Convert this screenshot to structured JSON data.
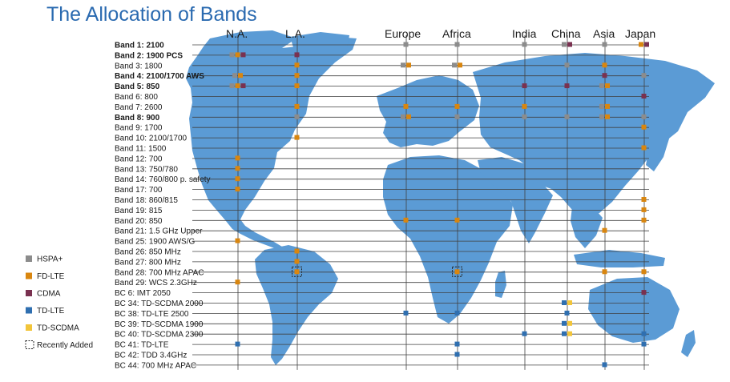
{
  "title": "The Allocation of Bands",
  "colors": {
    "map": "#5b9bd5",
    "HSPA+": "#8c8c8c",
    "FD-LTE": "#d9860f",
    "CDMA": "#7a3150",
    "TD-LTE": "#2f6fb0",
    "TD-SCDMA": "#f2c53a",
    "title": "#2a6ab0"
  },
  "regions": [
    "N.A.",
    "L.A.",
    "Europe",
    "Africa",
    "India",
    "China",
    "Asia",
    "Japan"
  ],
  "bands": [
    {
      "label": "Band 1:  2100",
      "bold": true
    },
    {
      "label": "Band 2:  1900 PCS",
      "bold": true
    },
    {
      "label": "Band 3:  1800",
      "bold": false
    },
    {
      "label": "Band 4:  2100/1700 AWS",
      "bold": true
    },
    {
      "label": "Band 5:  850",
      "bold": true
    },
    {
      "label": "Band 6:  800",
      "bold": false
    },
    {
      "label": "Band 7:  2600",
      "bold": false
    },
    {
      "label": "Band 8:  900",
      "bold": true
    },
    {
      "label": "Band 9:  1700",
      "bold": false
    },
    {
      "label": "Band 10:  2100/1700",
      "bold": false
    },
    {
      "label": "Band 11:  1500",
      "bold": false
    },
    {
      "label": "Band 12:  700",
      "bold": false
    },
    {
      "label": "Band 13:  750/780",
      "bold": false
    },
    {
      "label": "Band 14:  760/800 p. safety",
      "bold": false
    },
    {
      "label": "Band 17:  700",
      "bold": false
    },
    {
      "label": "Band 18:  860/815",
      "bold": false
    },
    {
      "label": "Band 19:  815",
      "bold": false
    },
    {
      "label": "Band 20:  850",
      "bold": false
    },
    {
      "label": "Band 21:  1.5 GHz Upper",
      "bold": false
    },
    {
      "label": "Band 25:  1900 AWS/G",
      "bold": false
    },
    {
      "label": "Band 26:  850 MHz",
      "bold": false
    },
    {
      "label": "Band 27:  800 MHz",
      "bold": false
    },
    {
      "label": "Band 28:  700 MHz APAC",
      "bold": false
    },
    {
      "label": "Band 29:  WCS 2.3GHz",
      "bold": false
    },
    {
      "label": "BC 6:  IMT 2050",
      "bold": false
    },
    {
      "label": "BC 34:  TD-SCDMA 2000",
      "bold": false
    },
    {
      "label": "BC 38:  TD-LTE 2500",
      "bold": false
    },
    {
      "label": "BC 39:  TD-SCDMA 1900",
      "bold": false
    },
    {
      "label": "BC 40:  TD-SCDMA 2300",
      "bold": false
    },
    {
      "label": "BC 41:  TD-LTE",
      "bold": false
    },
    {
      "label": "BC 42:  TDD 3.4GHz",
      "bold": false
    },
    {
      "label": "BC 44:  700 MHz APAC",
      "bold": false
    }
  ],
  "legend": [
    {
      "label": "HSPA+",
      "tech": "HSPA+"
    },
    {
      "label": "FD-LTE",
      "tech": "FD-LTE"
    },
    {
      "label": "CDMA",
      "tech": "CDMA"
    },
    {
      "label": "TD-LTE",
      "tech": "TD-LTE"
    },
    {
      "label": "TD-SCDMA",
      "tech": "TD-SCDMA"
    },
    {
      "label": "Recently Added",
      "tech": "recent"
    }
  ],
  "allocations": [
    {
      "band": "Band 1:  2100",
      "region": "Europe",
      "tech": "HSPA+"
    },
    {
      "band": "Band 1:  2100",
      "region": "Africa",
      "tech": "HSPA+"
    },
    {
      "band": "Band 1:  2100",
      "region": "India",
      "tech": "HSPA+"
    },
    {
      "band": "Band 1:  2100",
      "region": "China",
      "tech": "HSPA+"
    },
    {
      "band": "Band 1:  2100",
      "region": "China",
      "tech": "CDMA"
    },
    {
      "band": "Band 1:  2100",
      "region": "Asia",
      "tech": "HSPA+"
    },
    {
      "band": "Band 1:  2100",
      "region": "Japan",
      "tech": "FD-LTE"
    },
    {
      "band": "Band 1:  2100",
      "region": "Japan",
      "tech": "CDMA"
    },
    {
      "band": "Band 2:  1900 PCS",
      "region": "N.A.",
      "tech": "HSPA+"
    },
    {
      "band": "Band 2:  1900 PCS",
      "region": "N.A.",
      "tech": "FD-LTE"
    },
    {
      "band": "Band 2:  1900 PCS",
      "region": "N.A.",
      "tech": "CDMA"
    },
    {
      "band": "Band 2:  1900 PCS",
      "region": "L.A.",
      "tech": "CDMA"
    },
    {
      "band": "Band 3:  1800",
      "region": "L.A.",
      "tech": "FD-LTE"
    },
    {
      "band": "Band 3:  1800",
      "region": "Europe",
      "tech": "HSPA+"
    },
    {
      "band": "Band 3:  1800",
      "region": "Europe",
      "tech": "FD-LTE"
    },
    {
      "band": "Band 3:  1800",
      "region": "Africa",
      "tech": "HSPA+"
    },
    {
      "band": "Band 3:  1800",
      "region": "Africa",
      "tech": "FD-LTE"
    },
    {
      "band": "Band 3:  1800",
      "region": "China",
      "tech": "HSPA+"
    },
    {
      "band": "Band 3:  1800",
      "region": "Asia",
      "tech": "FD-LTE"
    },
    {
      "band": "Band 4:  2100/1700 AWS",
      "region": "N.A.",
      "tech": "HSPA+"
    },
    {
      "band": "Band 4:  2100/1700 AWS",
      "region": "N.A.",
      "tech": "FD-LTE"
    },
    {
      "band": "Band 4:  2100/1700 AWS",
      "region": "L.A.",
      "tech": "FD-LTE"
    },
    {
      "band": "Band 4:  2100/1700 AWS",
      "region": "Asia",
      "tech": "CDMA"
    },
    {
      "band": "Band 4:  2100/1700 AWS",
      "region": "Japan",
      "tech": "HSPA+"
    },
    {
      "band": "Band 5:  850",
      "region": "N.A.",
      "tech": "HSPA+"
    },
    {
      "band": "Band 5:  850",
      "region": "N.A.",
      "tech": "FD-LTE"
    },
    {
      "band": "Band 5:  850",
      "region": "N.A.",
      "tech": "CDMA"
    },
    {
      "band": "Band 5:  850",
      "region": "L.A.",
      "tech": "FD-LTE"
    },
    {
      "band": "Band 5:  850",
      "region": "India",
      "tech": "CDMA"
    },
    {
      "band": "Band 5:  850",
      "region": "China",
      "tech": "CDMA"
    },
    {
      "band": "Band 5:  850",
      "region": "Asia",
      "tech": "HSPA+"
    },
    {
      "band": "Band 5:  850",
      "region": "Asia",
      "tech": "FD-LTE"
    },
    {
      "band": "Band 6:  800",
      "region": "Japan",
      "tech": "CDMA"
    },
    {
      "band": "Band 7:  2600",
      "region": "L.A.",
      "tech": "FD-LTE"
    },
    {
      "band": "Band 7:  2600",
      "region": "Europe",
      "tech": "FD-LTE"
    },
    {
      "band": "Band 7:  2600",
      "region": "Africa",
      "tech": "FD-LTE"
    },
    {
      "band": "Band 7:  2600",
      "region": "India",
      "tech": "FD-LTE"
    },
    {
      "band": "Band 7:  2600",
      "region": "Asia",
      "tech": "HSPA+"
    },
    {
      "band": "Band 7:  2600",
      "region": "Asia",
      "tech": "FD-LTE"
    },
    {
      "band": "Band 8:  900",
      "region": "L.A.",
      "tech": "HSPA+"
    },
    {
      "band": "Band 8:  900",
      "region": "Europe",
      "tech": "HSPA+"
    },
    {
      "band": "Band 8:  900",
      "region": "Europe",
      "tech": "FD-LTE"
    },
    {
      "band": "Band 8:  900",
      "region": "Africa",
      "tech": "HSPA+"
    },
    {
      "band": "Band 8:  900",
      "region": "India",
      "tech": "HSPA+"
    },
    {
      "band": "Band 8:  900",
      "region": "China",
      "tech": "HSPA+"
    },
    {
      "band": "Band 8:  900",
      "region": "Asia",
      "tech": "HSPA+"
    },
    {
      "band": "Band 8:  900",
      "region": "Asia",
      "tech": "FD-LTE"
    },
    {
      "band": "Band 8:  900",
      "region": "Japan",
      "tech": "HSPA+"
    },
    {
      "band": "Band 9:  1700",
      "region": "Japan",
      "tech": "FD-LTE"
    },
    {
      "band": "Band 10:  2100/1700",
      "region": "L.A.",
      "tech": "FD-LTE"
    },
    {
      "band": "Band 11:  1500",
      "region": "Japan",
      "tech": "FD-LTE"
    },
    {
      "band": "Band 12:  700",
      "region": "N.A.",
      "tech": "FD-LTE"
    },
    {
      "band": "Band 13:  750/780",
      "region": "N.A.",
      "tech": "FD-LTE"
    },
    {
      "band": "Band 14:  760/800 p. safety",
      "region": "N.A.",
      "tech": "FD-LTE"
    },
    {
      "band": "Band 17:  700",
      "region": "N.A.",
      "tech": "FD-LTE"
    },
    {
      "band": "Band 18:  860/815",
      "region": "Japan",
      "tech": "FD-LTE"
    },
    {
      "band": "Band 19:  815",
      "region": "Japan",
      "tech": "FD-LTE"
    },
    {
      "band": "Band 20:  850",
      "region": "Europe",
      "tech": "FD-LTE"
    },
    {
      "band": "Band 20:  850",
      "region": "Africa",
      "tech": "FD-LTE"
    },
    {
      "band": "Band 20:  850",
      "region": "Japan",
      "tech": "FD-LTE"
    },
    {
      "band": "Band 21:  1.5 GHz Upper",
      "region": "Asia",
      "tech": "FD-LTE"
    },
    {
      "band": "Band 25:  1900 AWS/G",
      "region": "N.A.",
      "tech": "FD-LTE"
    },
    {
      "band": "Band 26:  850 MHz",
      "region": "L.A.",
      "tech": "FD-LTE"
    },
    {
      "band": "Band 27:  800 MHz",
      "region": "L.A.",
      "tech": "FD-LTE"
    },
    {
      "band": "Band 28:  700 MHz APAC",
      "region": "L.A.",
      "tech": "FD-LTE",
      "recent": true
    },
    {
      "band": "Band 28:  700 MHz APAC",
      "region": "Africa",
      "tech": "FD-LTE",
      "recent": true
    },
    {
      "band": "Band 28:  700 MHz APAC",
      "region": "Asia",
      "tech": "FD-LTE"
    },
    {
      "band": "Band 28:  700 MHz APAC",
      "region": "Japan",
      "tech": "FD-LTE"
    },
    {
      "band": "Band 29:  WCS 2.3GHz",
      "region": "N.A.",
      "tech": "FD-LTE"
    },
    {
      "band": "BC 6:  IMT 2050",
      "region": "Japan",
      "tech": "CDMA"
    },
    {
      "band": "BC 34:  TD-SCDMA 2000",
      "region": "China",
      "tech": "TD-LTE"
    },
    {
      "band": "BC 34:  TD-SCDMA 2000",
      "region": "China",
      "tech": "TD-SCDMA"
    },
    {
      "band": "BC 38:  TD-LTE 2500",
      "region": "Europe",
      "tech": "TD-LTE"
    },
    {
      "band": "BC 38:  TD-LTE 2500",
      "region": "Africa",
      "tech": "TD-LTE"
    },
    {
      "band": "BC 38:  TD-LTE 2500",
      "region": "China",
      "tech": "TD-LTE"
    },
    {
      "band": "BC 39:  TD-SCDMA 1900",
      "region": "China",
      "tech": "TD-LTE"
    },
    {
      "band": "BC 39:  TD-SCDMA 1900",
      "region": "China",
      "tech": "TD-SCDMA"
    },
    {
      "band": "BC 40:  TD-SCDMA 2300",
      "region": "India",
      "tech": "TD-LTE"
    },
    {
      "band": "BC 40:  TD-SCDMA 2300",
      "region": "China",
      "tech": "TD-LTE"
    },
    {
      "band": "BC 40:  TD-SCDMA 2300",
      "region": "China",
      "tech": "TD-SCDMA"
    },
    {
      "band": "BC 40:  TD-SCDMA 2300",
      "region": "Japan",
      "tech": "TD-LTE"
    },
    {
      "band": "BC 41:  TD-LTE",
      "region": "N.A.",
      "tech": "TD-LTE"
    },
    {
      "band": "BC 41:  TD-LTE",
      "region": "Africa",
      "tech": "TD-LTE"
    },
    {
      "band": "BC 41:  TD-LTE",
      "region": "Japan",
      "tech": "TD-LTE"
    },
    {
      "band": "BC 42:  TDD 3.4GHz",
      "region": "Africa",
      "tech": "TD-LTE"
    },
    {
      "band": "BC 44:  700 MHz APAC",
      "region": "Asia",
      "tech": "TD-LTE"
    }
  ]
}
